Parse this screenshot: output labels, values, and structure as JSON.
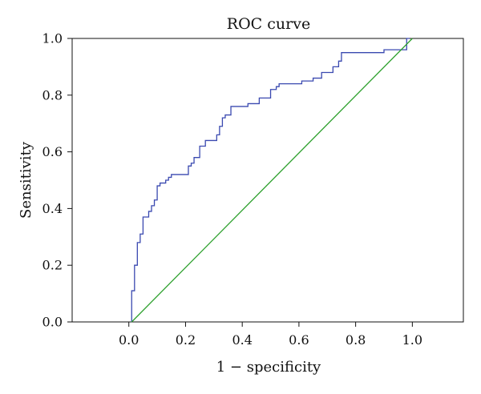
{
  "chart_data": {
    "type": "line",
    "title": "ROC curve",
    "xlabel": "1 − specificity",
    "ylabel": "Sensitivity",
    "xlim": [
      -0.2,
      1.18
    ],
    "ylim": [
      0,
      1.0
    ],
    "xticks": [
      "0.0",
      "0.2",
      "0.4",
      "0.6",
      "0.8",
      "1.0"
    ],
    "yticks": [
      "0.0",
      "0.2",
      "0.4",
      "0.6",
      "0.8",
      "1.0"
    ],
    "grid": false,
    "series": [
      {
        "color": "#3a49b0",
        "shape": "step",
        "x": [
          0.01,
          0.01,
          0.02,
          0.02,
          0.03,
          0.03,
          0.04,
          0.04,
          0.05,
          0.05,
          0.07,
          0.07,
          0.08,
          0.08,
          0.09,
          0.09,
          0.1,
          0.1,
          0.11,
          0.11,
          0.13,
          0.13,
          0.14,
          0.14,
          0.15,
          0.15,
          0.16,
          0.16,
          0.21,
          0.21,
          0.22,
          0.22,
          0.23,
          0.23,
          0.25,
          0.25,
          0.27,
          0.27,
          0.31,
          0.31,
          0.32,
          0.32,
          0.33,
          0.33,
          0.34,
          0.34,
          0.36,
          0.36,
          0.37,
          0.37,
          0.42,
          0.42,
          0.46,
          0.46,
          0.5,
          0.5,
          0.52,
          0.52,
          0.53,
          0.53,
          0.61,
          0.61,
          0.65,
          0.65,
          0.68,
          0.68,
          0.72,
          0.72,
          0.74,
          0.74,
          0.75,
          0.75,
          0.9,
          0.9,
          0.98,
          0.98,
          0.99
        ],
        "y": [
          0.0,
          0.11,
          0.11,
          0.2,
          0.2,
          0.28,
          0.28,
          0.31,
          0.31,
          0.37,
          0.37,
          0.39,
          0.39,
          0.41,
          0.41,
          0.43,
          0.43,
          0.48,
          0.48,
          0.49,
          0.49,
          0.5,
          0.5,
          0.51,
          0.51,
          0.52,
          0.52,
          0.52,
          0.52,
          0.55,
          0.55,
          0.56,
          0.56,
          0.58,
          0.58,
          0.62,
          0.62,
          0.64,
          0.64,
          0.66,
          0.66,
          0.69,
          0.69,
          0.72,
          0.72,
          0.73,
          0.73,
          0.76,
          0.76,
          0.76,
          0.76,
          0.77,
          0.77,
          0.79,
          0.79,
          0.82,
          0.82,
          0.83,
          0.83,
          0.84,
          0.84,
          0.85,
          0.85,
          0.86,
          0.86,
          0.88,
          0.88,
          0.9,
          0.9,
          0.92,
          0.92,
          0.95,
          0.95,
          0.96,
          0.96,
          1.0,
          1.0
        ]
      },
      {
        "color": "#2ca02c",
        "shape": "line",
        "x": [
          0.01,
          1.0
        ],
        "y": [
          0.0,
          1.0
        ]
      }
    ]
  }
}
